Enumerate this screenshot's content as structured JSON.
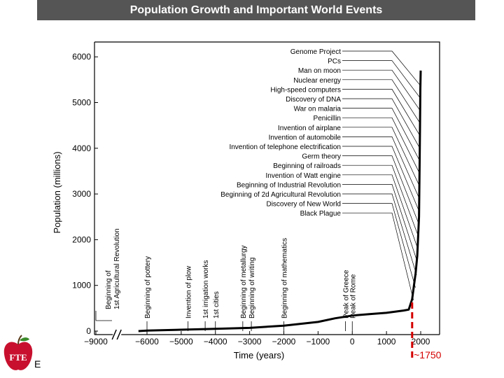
{
  "slide": {
    "title": "Population Growth and Important World Events",
    "footer_text": "E",
    "logo_text": "FTE"
  },
  "chart_data": {
    "type": "line",
    "title": "",
    "xlabel": "Time (years)",
    "ylabel": "Population (millions)",
    "ylim": [
      0,
      6300
    ],
    "xlim": [
      -9000,
      2300
    ],
    "x_axis_break_between": [
      -9000,
      -6000
    ],
    "x_ticks": [
      {
        "value": -9000,
        "label": "−9000"
      },
      {
        "value": -6000,
        "label": "−6000"
      },
      {
        "value": -5000,
        "label": "−5000"
      },
      {
        "value": -4000,
        "label": "−4000"
      },
      {
        "value": -3000,
        "label": "−3000"
      },
      {
        "value": -2000,
        "label": "−2000"
      },
      {
        "value": -1000,
        "label": "−1000"
      },
      {
        "value": 0,
        "label": "0"
      },
      {
        "value": 1000,
        "label": "1000"
      },
      {
        "value": 2000,
        "label": "2000"
      }
    ],
    "y_ticks": [
      {
        "value": 0,
        "label": "0"
      },
      {
        "value": 1000,
        "label": "1000"
      },
      {
        "value": 2000,
        "label": "2000"
      },
      {
        "value": 3000,
        "label": "3000"
      },
      {
        "value": 4000,
        "label": "4000"
      },
      {
        "value": 5000,
        "label": "5000"
      },
      {
        "value": 6000,
        "label": "6000"
      }
    ],
    "series": [
      {
        "x": [
          -6500,
          -6000,
          -5000,
          -4000,
          -3000,
          -2000,
          -1000,
          -500,
          0,
          500,
          1000,
          1500,
          1650,
          1750,
          1800,
          1850,
          1900,
          1950,
          1970,
          1980,
          1990,
          2000
        ],
        "y": [
          0,
          10,
          30,
          50,
          70,
          120,
          200,
          280,
          340,
          370,
          400,
          450,
          470,
          700,
          980,
          1260,
          1650,
          2500,
          3700,
          4450,
          5300,
          5700
        ]
      }
    ],
    "vertical_events": [
      {
        "label": "Beginning of 1st Agricultural Revolution",
        "x": -9000
      },
      {
        "label": "Beginning of pottery",
        "x": -6000
      },
      {
        "label": "Invention of plow",
        "x": -4800
      },
      {
        "label": "1st irrigation works",
        "x": -4300
      },
      {
        "label": "1st cities",
        "x": -4000
      },
      {
        "label": "Beginning of metallurgy",
        "x": -3200
      },
      {
        "label": "Beginning of writing",
        "x": -2950
      },
      {
        "label": "Beginning of mathematics",
        "x": -2000
      },
      {
        "label": "Peak of Greece",
        "x": -200
      },
      {
        "label": "Peak of Rome",
        "x": 0
      }
    ],
    "right_events": [
      {
        "label": "Genome Project",
        "x": 2000
      },
      {
        "label": "PCs",
        "x": 1998
      },
      {
        "label": "Man on moon",
        "x": 1996
      },
      {
        "label": "Nuclear energy",
        "x": 1993
      },
      {
        "label": "High-speed computers",
        "x": 1990
      },
      {
        "label": "Discovery of DNA",
        "x": 1987
      },
      {
        "label": "War on malaria",
        "x": 1984
      },
      {
        "label": "Penicillin",
        "x": 1980
      },
      {
        "label": "Invention of airplane",
        "x": 1975
      },
      {
        "label": "Invention of automobile",
        "x": 1970
      },
      {
        "label": "Invention of telephone electrification",
        "x": 1962
      },
      {
        "label": "Germ theory",
        "x": 1952
      },
      {
        "label": "Beginning of railroads",
        "x": 1940
      },
      {
        "label": "Invention of Watt engine",
        "x": 1925
      },
      {
        "label": "Beginning of Industrial Revolution",
        "x": 1905
      },
      {
        "label": "Beginning of 2d Agricultural Revolution",
        "x": 1880
      },
      {
        "label": "Discovery of New World",
        "x": 1845
      },
      {
        "label": "Black Plague",
        "x": 1790
      }
    ],
    "marker": {
      "x": 1750,
      "label": "~1750",
      "color": "#d40000"
    },
    "line_color": "#000000"
  }
}
